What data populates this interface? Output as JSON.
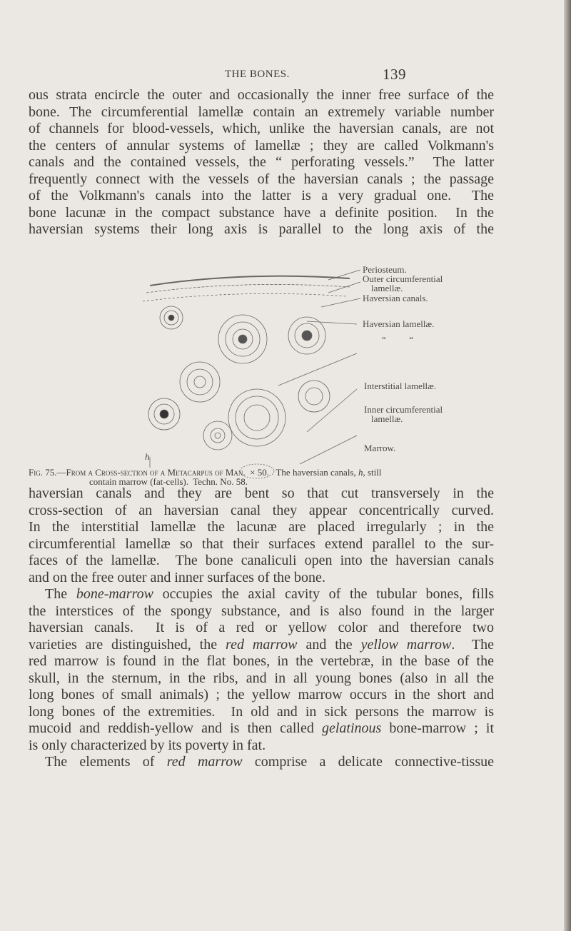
{
  "header": {
    "title": "THE BONES.",
    "page_number": "139"
  },
  "body_before": {
    "lines": [
      "ous strata encircle the outer and occasionally the inner free surface of the",
      "bone. The circumferential lamellæ contain an extremely variable number",
      "of channels for blood-vessels, which, unlike the haversian canals, are not",
      "the centers of annular systems of lamellæ ; they are called Volkmann's",
      "canals and the contained vessels, the “ perforating vessels.”  The latter",
      "frequently connect with the vessels of the haversian canals ; the passage",
      "of the Volkmann's canals into the latter is a very gradual one.  The",
      "bone lacunæ in the compact substance have a definite position.  In the",
      "haversian systems their long axis is parallel to the long axis of the"
    ]
  },
  "figure": {
    "labels": [
      "Periosteum.",
      "Outer circumferential",
      "lamellæ.",
      "Haversian canals.",
      "Haversian lamellæ.",
      "“          “",
      "Interstitial lamellæ.",
      "Inner circumferential",
      "lamellæ.",
      "Marrow.",
      "h"
    ],
    "caption": {
      "lines": [
        [
          "Fig. 75.—From a Cross-section of a Metacarpus of Man.",
          "  × 50.   The haversian canals, ",
          "h",
          ", still"
        ],
        "contain marrow (fat-cells).  Techn. No. 58."
      ]
    }
  },
  "body_after": {
    "lines": [
      "haversian canals and they are bent so that cut transversely in the",
      "cross-section of an haversian canal they appear concentrically curved.",
      "In the interstitial lamellæ the lacunæ are placed irregularly ; in the",
      "circumferential lamellæ so that their surfaces extend parallel to the sur-",
      "faces of the lamellæ.  The bone canaliculi open into the haversian canals",
      "and on the free outer and inner surfaces of the bone.",
      [
        "The ",
        "bone-marrow",
        " occupies the axial cavity of the tubular bones, fills"
      ],
      "the interstices of the spongy substance, and is also found in the larger",
      "haversian canals.  It is of a red or yellow color and therefore two",
      [
        "varieties are distinguished, the ",
        "red marrow",
        " and the ",
        "yellow marrow",
        ".  The"
      ],
      "red marrow is found in the flat bones, in the vertebræ, in the base of the",
      "skull, in the sternum, in the ribs, and in all young bones (also in all the",
      "long bones of small animals) ; the yellow marrow occurs in the short and",
      "long bones of the extremities.  In old and in sick persons the marrow is",
      [
        "mucoid and reddish-yellow and is then called ",
        "gelatinous",
        " bone-marrow ; it"
      ],
      "is only characterized by its poverty in fat.",
      [
        "The elements of ",
        "red marrow",
        " comprise a delicate connective-tissue"
      ]
    ]
  }
}
